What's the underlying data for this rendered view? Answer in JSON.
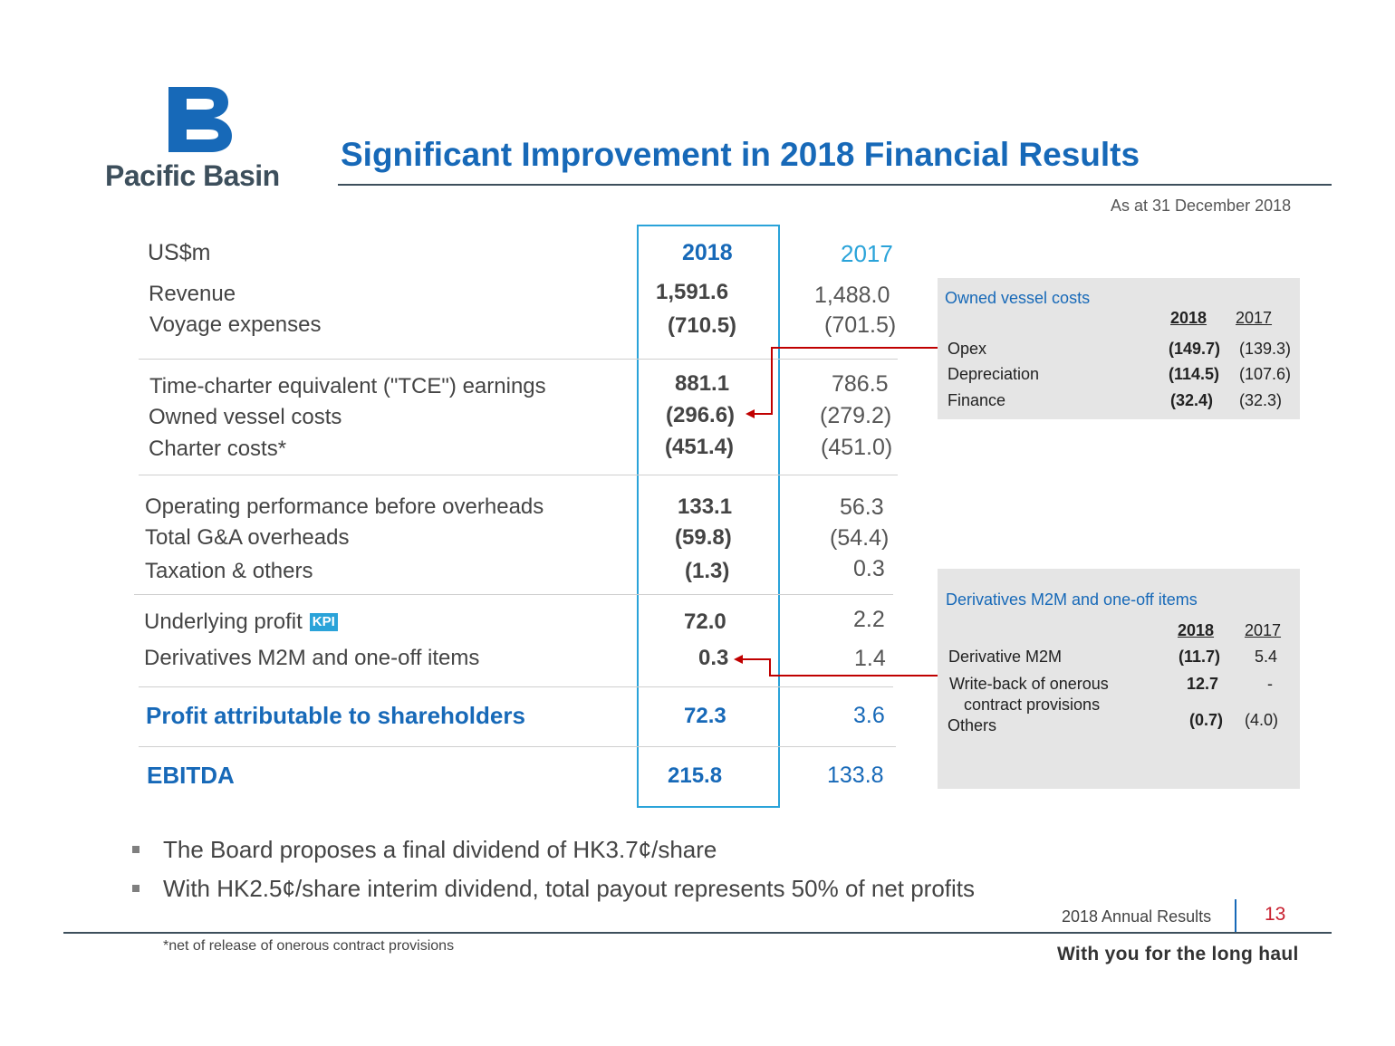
{
  "brand": {
    "name": "Pacific Basin",
    "logo_color": "#1769b8"
  },
  "title": "Significant Improvement in 2018 Financial Results",
  "as_at": "As at 31 December 2018",
  "table": {
    "unit_label": "US$m",
    "year_current": "2018",
    "year_prior": "2017",
    "rows": [
      {
        "label": "Revenue",
        "v2018": "1,591.6",
        "v2017": "1,488.0"
      },
      {
        "label": "Voyage expenses",
        "v2018": "(710.5)",
        "v2017": "(701.5)"
      },
      {
        "label": "Time-charter equivalent (\"TCE\") earnings",
        "v2018": "881.1",
        "v2017": "786.5"
      },
      {
        "label": "Owned vessel costs",
        "v2018": "(296.6)",
        "v2017": "(279.2)"
      },
      {
        "label": "Charter costs*",
        "v2018": "(451.4)",
        "v2017": "(451.0)"
      },
      {
        "label": "Operating performance before overheads",
        "v2018": "133.1",
        "v2017": "56.3"
      },
      {
        "label": "Total G&A overheads",
        "v2018": "(59.8)",
        "v2017": "(54.4)"
      },
      {
        "label": "Taxation & others",
        "v2018": "(1.3)",
        "v2017": "0.3"
      },
      {
        "label": "Underlying profit",
        "badge": "KPI",
        "v2018": "72.0",
        "v2017": "2.2"
      },
      {
        "label": "Derivatives M2M and one-off items",
        "v2018": "0.3",
        "v2017": "1.4"
      },
      {
        "label": "Profit attributable to shareholders",
        "v2018": "72.3",
        "v2017": "3.6"
      },
      {
        "label": "EBITDA",
        "v2018": "215.8",
        "v2017": "133.8"
      }
    ]
  },
  "owned_vessel_box": {
    "title": "Owned vessel costs",
    "col_2018": "2018",
    "col_2017": "2017",
    "rows": [
      {
        "label": "Opex",
        "v2018": "(149.7)",
        "v2017": "(139.3)"
      },
      {
        "label": "Depreciation",
        "v2018": "(114.5)",
        "v2017": "(107.6)"
      },
      {
        "label": "Finance",
        "v2018": "(32.4)",
        "v2017": "(32.3)"
      }
    ]
  },
  "derivatives_box": {
    "title": "Derivatives M2M and one-off items",
    "col_2018": "2018",
    "col_2017": "2017",
    "rows": [
      {
        "label": "Derivative M2M",
        "v2018": "(11.7)",
        "v2017": "5.4"
      },
      {
        "label": "Write-back of onerous",
        "label2": "contract provisions",
        "v2018": "12.7",
        "v2017": "-"
      },
      {
        "label": "Others",
        "v2018": "(0.7)",
        "v2017": "(4.0)"
      }
    ]
  },
  "bullets": [
    "The Board proposes a final dividend of HK3.7¢/share",
    "With HK2.5¢/share interim dividend, total payout represents 50% of net profits"
  ],
  "footnote": "*net of release of onerous contract provisions",
  "footer": {
    "report_name": "2018 Annual Results",
    "page_number": "13",
    "tagline": "With you for the long haul"
  },
  "colors": {
    "primary_blue": "#1769b8",
    "highlight_cyan": "#2aa3d9",
    "arrow_red": "#c00000",
    "box_grey": "#e5e5e5"
  }
}
